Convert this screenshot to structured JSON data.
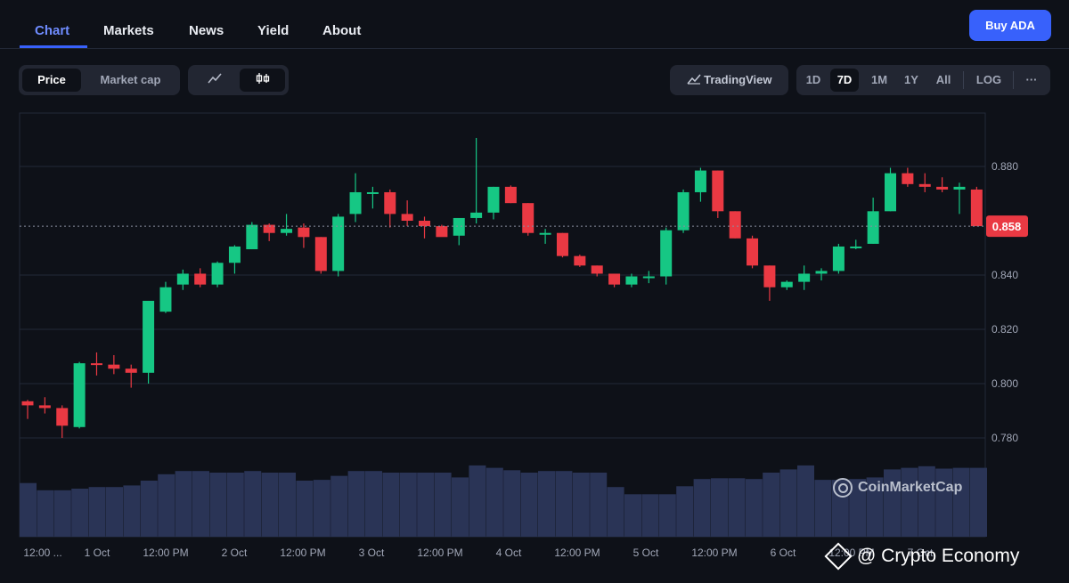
{
  "nav": {
    "tabs": [
      {
        "label": "Chart",
        "active": true
      },
      {
        "label": "Markets",
        "active": false
      },
      {
        "label": "News",
        "active": false
      },
      {
        "label": "Yield",
        "active": false
      },
      {
        "label": "About",
        "active": false
      }
    ],
    "buy_label": "Buy ADA"
  },
  "toolbar": {
    "price_label": "Price",
    "market_cap_label": "Market cap",
    "line_icon": "line-chart-icon",
    "candle_icon": "candlestick-icon",
    "tradingview_label": "TradingView",
    "ranges": [
      "1D",
      "7D",
      "1M",
      "1Y",
      "All"
    ],
    "active_range": "7D",
    "log_label": "LOG",
    "more_label": "···"
  },
  "watermark": "CoinMarketCap",
  "credit": "@ Crypto Economy",
  "colors": {
    "up": "#16c784",
    "down": "#ea3943",
    "volume": "#2a3456",
    "accent": "#3861fb"
  },
  "chart_data": {
    "type": "candlestick",
    "price_label": "0.858",
    "y_ticks": [
      0.78,
      0.8,
      0.82,
      0.84,
      0.86,
      0.88
    ],
    "y_tick_labels": [
      "0.780",
      "0.800",
      "0.820",
      "0.840",
      "",
      "0.880"
    ],
    "x_tick_labels": [
      "12:00 ...",
      "1 Oct",
      "12:00 PM",
      "2 Oct",
      "12:00 PM",
      "3 Oct",
      "12:00 PM",
      "4 Oct",
      "12:00 PM",
      "5 Oct",
      "12:00 PM",
      "6 Oct",
      "12:00 PM",
      "7 Oct"
    ],
    "ohlc": [
      [
        0.7935,
        0.794,
        0.787,
        0.792
      ],
      [
        0.792,
        0.795,
        0.789,
        0.791
      ],
      [
        0.791,
        0.792,
        0.78,
        0.7845
      ],
      [
        0.784,
        0.808,
        0.7835,
        0.8075
      ],
      [
        0.8075,
        0.8115,
        0.803,
        0.807
      ],
      [
        0.807,
        0.8105,
        0.8035,
        0.8055
      ],
      [
        0.8055,
        0.807,
        0.7985,
        0.804
      ],
      [
        0.804,
        0.8305,
        0.8,
        0.8305
      ],
      [
        0.8265,
        0.8375,
        0.826,
        0.8355
      ],
      [
        0.8365,
        0.842,
        0.8345,
        0.8405
      ],
      [
        0.8405,
        0.8425,
        0.8355,
        0.8365
      ],
      [
        0.8365,
        0.845,
        0.8355,
        0.8445
      ],
      [
        0.8445,
        0.851,
        0.8405,
        0.8505
      ],
      [
        0.8495,
        0.8595,
        0.8495,
        0.8585
      ],
      [
        0.8585,
        0.859,
        0.8525,
        0.8555
      ],
      [
        0.8555,
        0.8625,
        0.8545,
        0.857
      ],
      [
        0.8575,
        0.859,
        0.85,
        0.854
      ],
      [
        0.854,
        0.854,
        0.8405,
        0.8415
      ],
      [
        0.8415,
        0.8625,
        0.8395,
        0.8615
      ],
      [
        0.8625,
        0.8775,
        0.8595,
        0.8705
      ],
      [
        0.8705,
        0.8725,
        0.8645,
        0.8705
      ],
      [
        0.8705,
        0.8715,
        0.8575,
        0.8625
      ],
      [
        0.8625,
        0.8675,
        0.858,
        0.86
      ],
      [
        0.86,
        0.8615,
        0.8535,
        0.858
      ],
      [
        0.858,
        0.8585,
        0.8545,
        0.854
      ],
      [
        0.8545,
        0.8605,
        0.851,
        0.861
      ],
      [
        0.861,
        0.8905,
        0.859,
        0.863
      ],
      [
        0.863,
        0.8725,
        0.8605,
        0.8725
      ],
      [
        0.8725,
        0.873,
        0.8665,
        0.8665
      ],
      [
        0.8665,
        0.8665,
        0.8545,
        0.8555
      ],
      [
        0.8555,
        0.857,
        0.8515,
        0.8555
      ],
      [
        0.8555,
        0.8555,
        0.8465,
        0.847
      ],
      [
        0.847,
        0.8475,
        0.843,
        0.8435
      ],
      [
        0.8435,
        0.8435,
        0.8395,
        0.8405
      ],
      [
        0.8405,
        0.8405,
        0.8355,
        0.8365
      ],
      [
        0.8365,
        0.8405,
        0.8355,
        0.8395
      ],
      [
        0.8395,
        0.8415,
        0.837,
        0.8395
      ],
      [
        0.8395,
        0.8575,
        0.8365,
        0.8565
      ],
      [
        0.8565,
        0.8715,
        0.8555,
        0.8705
      ],
      [
        0.8705,
        0.8795,
        0.867,
        0.8785
      ],
      [
        0.8785,
        0.8785,
        0.861,
        0.8635
      ],
      [
        0.8635,
        0.8635,
        0.8535,
        0.8535
      ],
      [
        0.8535,
        0.8545,
        0.8425,
        0.8435
      ],
      [
        0.8435,
        0.8435,
        0.8305,
        0.8355
      ],
      [
        0.8355,
        0.838,
        0.8345,
        0.8375
      ],
      [
        0.8375,
        0.8435,
        0.8345,
        0.8405
      ],
      [
        0.8405,
        0.8425,
        0.838,
        0.8415
      ],
      [
        0.8415,
        0.8515,
        0.8405,
        0.8505
      ],
      [
        0.8505,
        0.853,
        0.8495,
        0.8505
      ],
      [
        0.8515,
        0.8685,
        0.8515,
        0.8635
      ],
      [
        0.8635,
        0.8795,
        0.8635,
        0.8775
      ],
      [
        0.8775,
        0.8795,
        0.8725,
        0.8735
      ],
      [
        0.8735,
        0.8775,
        0.8705,
        0.8725
      ],
      [
        0.8725,
        0.876,
        0.8705,
        0.8715
      ],
      [
        0.8715,
        0.874,
        0.8625,
        0.8725
      ],
      [
        0.8715,
        0.8725,
        0.858,
        0.858
      ]
    ],
    "volume": [
      0.67,
      0.58,
      0.58,
      0.6,
      0.62,
      0.62,
      0.64,
      0.7,
      0.78,
      0.82,
      0.82,
      0.8,
      0.8,
      0.82,
      0.8,
      0.8,
      0.7,
      0.71,
      0.76,
      0.82,
      0.82,
      0.8,
      0.8,
      0.8,
      0.8,
      0.74,
      0.89,
      0.86,
      0.83,
      0.8,
      0.82,
      0.82,
      0.8,
      0.8,
      0.62,
      0.53,
      0.53,
      0.53,
      0.63,
      0.72,
      0.73,
      0.73,
      0.72,
      0.8,
      0.84,
      0.89,
      0.71,
      0.71,
      0.72,
      0.74,
      0.84,
      0.86,
      0.88,
      0.85,
      0.86,
      0.86
    ]
  }
}
